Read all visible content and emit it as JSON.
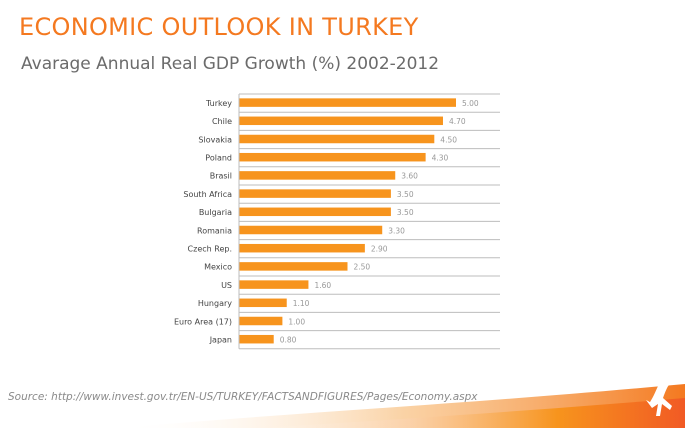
{
  "header": {
    "title": "ECONOMIC OUTLOOK IN TURKEY",
    "subtitle": "Avarage Annual Real GDP Growth (%) 2002-2012"
  },
  "footer": {
    "source": "Source: http://www.invest.gov.tr/EN-US/TURKEY/FACTSANDFIGURES/Pages/Economy.aspx"
  },
  "colors": {
    "accent": "#f47920",
    "bar": "#f7941d",
    "label": "#444444",
    "value": "#999999",
    "divider": "#bdbdbd"
  },
  "chart_data": {
    "type": "bar",
    "orientation": "horizontal",
    "categories": [
      "Turkey",
      "Chile",
      "Slovakia",
      "Poland",
      "Brasil",
      "South Africa",
      "Bulgaria",
      "Romania",
      "Czech Rep.",
      "Mexico",
      "US",
      "Hungary",
      "Euro Area (17)",
      "Japan"
    ],
    "values": [
      5.0,
      4.7,
      4.5,
      4.3,
      3.6,
      3.5,
      3.5,
      3.3,
      2.9,
      2.5,
      1.6,
      1.1,
      1.0,
      0.8
    ],
    "value_labels": [
      "5.00",
      "4.70",
      "4.50",
      "4.30",
      "3.60",
      "3.50",
      "3.50",
      "3.30",
      "2.90",
      "2.50",
      "1.60",
      "1.10",
      "1.00",
      "0.80"
    ],
    "xlim": [
      0,
      5.0
    ],
    "grid": false,
    "legend": "none"
  }
}
